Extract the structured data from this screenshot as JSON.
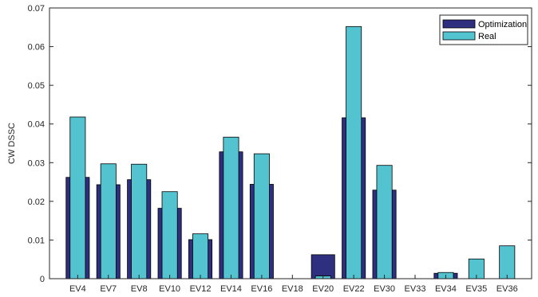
{
  "chart_data": {
    "type": "bar",
    "title": "",
    "xlabel": "",
    "ylabel": "CW DSSC",
    "ylim": [
      0,
      0.07
    ],
    "yticks": [
      0,
      0.01,
      0.02,
      0.03,
      0.04,
      0.05,
      0.06,
      0.07
    ],
    "grid": false,
    "legend_position": "top-right",
    "categories": [
      "EV4",
      "EV7",
      "EV8",
      "EV10",
      "EV12",
      "EV14",
      "EV16",
      "EV18",
      "EV20",
      "EV22",
      "EV30",
      "EV33",
      "EV34",
      "EV35",
      "EV36"
    ],
    "series": [
      {
        "name": "Optimization",
        "color": "#2e2f7f",
        "values": [
          0.0262,
          0.0243,
          0.0256,
          0.0182,
          0.0101,
          0.0328,
          0.0244,
          0,
          0.0062,
          0.0416,
          0.0229,
          0,
          0.0014,
          0,
          0
        ]
      },
      {
        "name": "Real",
        "color": "#54c3d0",
        "values": [
          0.0418,
          0.0297,
          0.0296,
          0.0225,
          0.0116,
          0.0366,
          0.0323,
          0,
          0.0007,
          0.0652,
          0.0293,
          0,
          0.0016,
          0.0051,
          0.0085
        ]
      }
    ]
  }
}
